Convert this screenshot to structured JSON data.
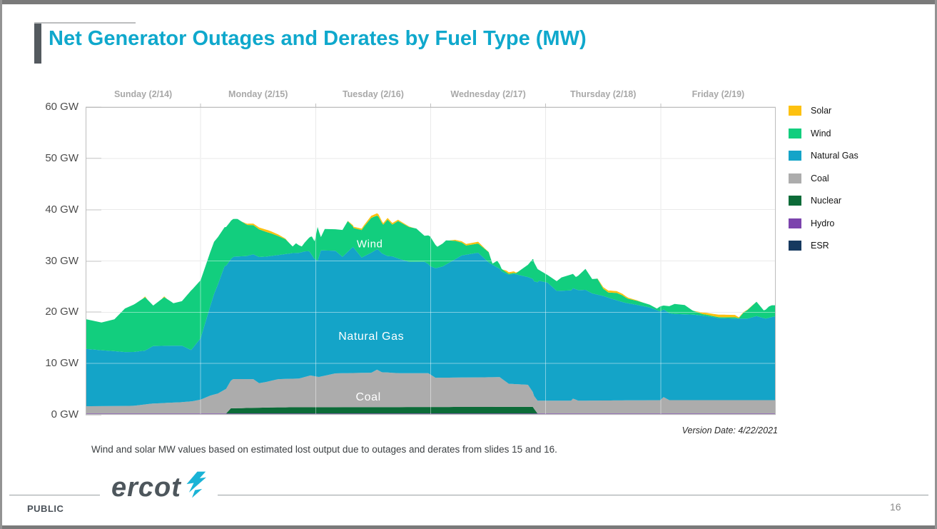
{
  "title": "Net Generator Outages and Derates by Fuel Type (MW)",
  "version_date": "Version Date: 4/22/2021",
  "footnote": "Wind and solar MW values based on estimated lost output due to outages and derates from slides 15 and 16.",
  "footer": {
    "classification": "PUBLIC",
    "page_number": "16",
    "logo_text": "ercot",
    "logo_icon": "lightning-bolt-icon",
    "logo_color": "#19b3d6"
  },
  "chart_data": {
    "type": "area",
    "stacked": true,
    "unit": "GW",
    "ylim": [
      0,
      60
    ],
    "y_step": 10,
    "y_tick_labels": [
      "60 GW",
      "50 GW",
      "40 GW",
      "30 GW",
      "20 GW",
      "10 GW",
      "0 GW"
    ],
    "x_total_hours": 144,
    "x_day_labels": [
      "Sunday (2/14)",
      "Monday (2/15)",
      "Tuesday (2/16)",
      "Wednesday (2/17)",
      "Thursday (2/18)",
      "Friday (2/19)"
    ],
    "grid": true,
    "legend_position": "right",
    "legend": [
      {
        "label": "Solar",
        "color": "#FDC110"
      },
      {
        "label": "Wind",
        "color": "#12CE7E"
      },
      {
        "label": "Natural Gas",
        "color": "#14A4C8"
      },
      {
        "label": "Coal",
        "color": "#ACACAC"
      },
      {
        "label": "Nuclear",
        "color": "#0C6B38"
      },
      {
        "label": "Hydro",
        "color": "#7C44AD"
      },
      {
        "label": "ESR",
        "color": "#16395F"
      }
    ],
    "area_labels": [
      {
        "text": "Wind",
        "t_hours": 59.3,
        "gw": 33.3,
        "size": 15
      },
      {
        "text": "Natural Gas",
        "t_hours": 59.6,
        "gw": 15.2,
        "size": 16
      },
      {
        "text": "Coal",
        "t_hours": 59.0,
        "gw": 3.35,
        "size": 16
      }
    ],
    "series_note": "stack order bottom to top; points are [hours_from_Sun_0000, GW_layer_thickness]",
    "series": [
      {
        "name": "ESR",
        "color": "#16395F",
        "points": [
          [
            0,
            0
          ],
          [
            144,
            0
          ]
        ]
      },
      {
        "name": "Hydro",
        "color": "#7C44AD",
        "points": [
          [
            0,
            0.25
          ],
          [
            144,
            0.25
          ]
        ]
      },
      {
        "name": "Nuclear",
        "color": "#0C6B38",
        "points": [
          [
            0,
            0
          ],
          [
            29.3,
            0
          ],
          [
            30.3,
            1.0
          ],
          [
            40,
            1.2
          ],
          [
            60,
            1.25
          ],
          [
            93.3,
            1.3
          ],
          [
            94.3,
            0
          ],
          [
            144,
            0
          ]
        ]
      },
      {
        "name": "Coal",
        "color": "#ACACAC",
        "points": [
          [
            0,
            1.4
          ],
          [
            10,
            1.5
          ],
          [
            14,
            1.95
          ],
          [
            20,
            2.2
          ],
          [
            22.3,
            2.4
          ],
          [
            24,
            2.7
          ],
          [
            26,
            3.5
          ],
          [
            27.6,
            3.9
          ],
          [
            29.3,
            4.8
          ],
          [
            30.8,
            5.7
          ],
          [
            35,
            5.6
          ],
          [
            36.2,
            4.8
          ],
          [
            37.7,
            5.0
          ],
          [
            40.2,
            5.5
          ],
          [
            44.5,
            5.6
          ],
          [
            46.9,
            6.2
          ],
          [
            48.7,
            5.9
          ],
          [
            52.1,
            6.6
          ],
          [
            59.6,
            6.7
          ],
          [
            60.8,
            7.3
          ],
          [
            61.8,
            6.8
          ],
          [
            65.5,
            6.6
          ],
          [
            71.5,
            6.6
          ],
          [
            73,
            5.7
          ],
          [
            86.4,
            5.8
          ],
          [
            88.3,
            4.5
          ],
          [
            92.3,
            4.3
          ],
          [
            93.6,
            2.5
          ],
          [
            101.3,
            2.5
          ],
          [
            101.7,
            2.9
          ],
          [
            102.8,
            2.5
          ],
          [
            119.9,
            2.6
          ],
          [
            120.6,
            3.2
          ],
          [
            121.8,
            2.6
          ],
          [
            144,
            2.6
          ]
        ]
      },
      {
        "name": "Natural Gas",
        "color": "#14A4C8",
        "points": [
          [
            0,
            11.2
          ],
          [
            3.3,
            10.9
          ],
          [
            6,
            10.7
          ],
          [
            8.2,
            10.5
          ],
          [
            12.4,
            10.5
          ],
          [
            14.1,
            11.2
          ],
          [
            18,
            11.1
          ],
          [
            20.1,
            11.0
          ],
          [
            22,
            10.0
          ],
          [
            24,
            12.0
          ],
          [
            26.8,
            19.6
          ],
          [
            29,
            24.1
          ],
          [
            30.2,
            23.7
          ],
          [
            31.3,
            23.9
          ],
          [
            33.5,
            24.0
          ],
          [
            36.2,
            24.6
          ],
          [
            40.2,
            24.2
          ],
          [
            43.2,
            24.5
          ],
          [
            45.7,
            24.5
          ],
          [
            46.6,
            24.3
          ],
          [
            47.7,
            22.9
          ],
          [
            48.4,
            22.6
          ],
          [
            49.1,
            24.6
          ],
          [
            52.1,
            23.9
          ],
          [
            53.6,
            22.7
          ],
          [
            55.8,
            24.6
          ],
          [
            57.6,
            22.5
          ],
          [
            59.6,
            23.4
          ],
          [
            61.1,
            23.5
          ],
          [
            63,
            22.7
          ],
          [
            64,
            22.7
          ],
          [
            67.5,
            21.7
          ],
          [
            70.7,
            21.7
          ],
          [
            71.9,
            21.1
          ],
          [
            74.5,
            21.7
          ],
          [
            78.5,
            23.8
          ],
          [
            81.9,
            24.3
          ],
          [
            84.1,
            22.4
          ],
          [
            86.8,
            20.9
          ],
          [
            89.4,
            21.5
          ],
          [
            92.3,
            21.0
          ],
          [
            94.6,
            23.4
          ],
          [
            96.4,
            23.0
          ],
          [
            98.3,
            21.4
          ],
          [
            101.3,
            21.5
          ],
          [
            104.3,
            21.6
          ],
          [
            105.7,
            20.9
          ],
          [
            108,
            20.4
          ],
          [
            110.2,
            19.7
          ],
          [
            112.7,
            19.0
          ],
          [
            115.1,
            18.6
          ],
          [
            117.7,
            18.1
          ],
          [
            119.9,
            17.3
          ],
          [
            120.6,
            17.1
          ],
          [
            122.9,
            16.8
          ],
          [
            126.6,
            16.7
          ],
          [
            129.6,
            16.4
          ],
          [
            132.1,
            16.0
          ],
          [
            136.3,
            15.9
          ],
          [
            138.1,
            15.9
          ],
          [
            140,
            16.4
          ],
          [
            141.9,
            15.9
          ],
          [
            144,
            16.4
          ]
        ]
      },
      {
        "name": "Wind",
        "color": "#12CE7E",
        "points": [
          [
            0,
            5.8
          ],
          [
            3.3,
            5.4
          ],
          [
            6,
            6.2
          ],
          [
            8.2,
            8.5
          ],
          [
            10.4,
            9.4
          ],
          [
            12.4,
            10.4
          ],
          [
            14.1,
            7.9
          ],
          [
            16.4,
            9.5
          ],
          [
            18.3,
            8.3
          ],
          [
            20.1,
            8.7
          ],
          [
            22,
            11.6
          ],
          [
            24,
            11.3
          ],
          [
            26.8,
            10.2
          ],
          [
            29,
            7.6
          ],
          [
            31.7,
            7.3
          ],
          [
            33.8,
            6.0
          ],
          [
            36.2,
            5.4
          ],
          [
            38.7,
            4.4
          ],
          [
            40.2,
            3.7
          ],
          [
            41.7,
            2.9
          ],
          [
            43.2,
            1.3
          ],
          [
            43.9,
            1.9
          ],
          [
            45.1,
            1.1
          ],
          [
            46.6,
            2.6
          ],
          [
            47.2,
            3.6
          ],
          [
            47.8,
            3.5
          ],
          [
            48.4,
            6.6
          ],
          [
            49.1,
            2.6
          ],
          [
            49.9,
            4.2
          ],
          [
            52.1,
            4.2
          ],
          [
            54.7,
            6.0
          ],
          [
            55.9,
            3.8
          ],
          [
            58.1,
            5.8
          ],
          [
            59.6,
            6.8
          ],
          [
            61.1,
            6.5
          ],
          [
            62.1,
            5.7
          ],
          [
            63,
            7.1
          ],
          [
            64,
            6.2
          ],
          [
            65.2,
            7.3
          ],
          [
            67,
            6.9
          ],
          [
            69,
            6.5
          ],
          [
            70.7,
            5.1
          ],
          [
            71.9,
            5.8
          ],
          [
            73.4,
            4.1
          ],
          [
            75.2,
            4.7
          ],
          [
            77.1,
            3.6
          ],
          [
            79.4,
            1.8
          ],
          [
            81.9,
            1.8
          ],
          [
            84.1,
            2.0
          ],
          [
            84.9,
            0.2
          ],
          [
            85.9,
            1.3
          ],
          [
            86.8,
            0.5
          ],
          [
            88.3,
            0.2
          ],
          [
            89.8,
            0.2
          ],
          [
            92.3,
            2.4
          ],
          [
            93.4,
            4.0
          ],
          [
            94.6,
            2.1
          ],
          [
            96.4,
            1.5
          ],
          [
            98.3,
            1.9
          ],
          [
            99.3,
            2.6
          ],
          [
            101.3,
            3.1
          ],
          [
            102.3,
            2.4
          ],
          [
            103,
            3.0
          ],
          [
            104.3,
            4.1
          ],
          [
            105.7,
            2.8
          ],
          [
            106.8,
            3.1
          ],
          [
            108,
            1.4
          ],
          [
            109.1,
            1.0
          ],
          [
            110.8,
            1.45
          ],
          [
            112,
            1.3
          ],
          [
            113.2,
            0.9
          ],
          [
            115.1,
            0.8
          ],
          [
            117.7,
            0.55
          ],
          [
            119.2,
            0.3
          ],
          [
            119.9,
            1.0
          ],
          [
            120.6,
            0.75
          ],
          [
            122.9,
            1.95
          ],
          [
            125,
            1.8
          ],
          [
            126.6,
            0.8
          ],
          [
            128.8,
            0.3
          ],
          [
            131,
            0.2
          ],
          [
            133.3,
            0.2
          ],
          [
            135.5,
            0.25
          ],
          [
            136.3,
            0.1
          ],
          [
            137.3,
            1.2
          ],
          [
            140,
            2.8
          ],
          [
            141.5,
            1.5
          ],
          [
            142.6,
            2.2
          ],
          [
            143.2,
            2.3
          ],
          [
            144,
            2.1
          ]
        ]
      },
      {
        "name": "Solar",
        "color": "#FDC110",
        "points": [
          [
            0,
            0
          ],
          [
            11.8,
            0
          ],
          [
            12.4,
            0.15
          ],
          [
            13,
            0
          ],
          [
            15.8,
            0
          ],
          [
            16.4,
            0.15
          ],
          [
            17,
            0
          ],
          [
            32.5,
            0
          ],
          [
            34,
            0.25
          ],
          [
            38,
            0.45
          ],
          [
            40.2,
            0.3
          ],
          [
            41.7,
            0.1
          ],
          [
            42.5,
            0
          ],
          [
            54.5,
            0
          ],
          [
            55.9,
            0.25
          ],
          [
            58.1,
            0.3
          ],
          [
            59.6,
            0.4
          ],
          [
            61.1,
            0.45
          ],
          [
            62.1,
            0.3
          ],
          [
            63,
            0.35
          ],
          [
            64,
            0.3
          ],
          [
            65.2,
            0.25
          ],
          [
            67,
            0.15
          ],
          [
            68.5,
            0
          ],
          [
            75.8,
            0
          ],
          [
            77.1,
            0.2
          ],
          [
            79.4,
            0.3
          ],
          [
            81.9,
            0.35
          ],
          [
            83.3,
            0.1
          ],
          [
            84.5,
            0
          ],
          [
            87,
            0
          ],
          [
            87.8,
            0.3
          ],
          [
            89.3,
            0.3
          ],
          [
            90.3,
            0
          ],
          [
            106.5,
            0
          ],
          [
            108,
            0.3
          ],
          [
            109.5,
            0.4
          ],
          [
            110.8,
            0.35
          ],
          [
            112,
            0.3
          ],
          [
            113.2,
            0.2
          ],
          [
            115.1,
            0.1
          ],
          [
            116.5,
            0
          ],
          [
            126.9,
            0
          ],
          [
            128.8,
            0.3
          ],
          [
            131,
            0.45
          ],
          [
            133.3,
            0.5
          ],
          [
            135.5,
            0.45
          ],
          [
            136.3,
            0.15
          ],
          [
            137.3,
            0.1
          ],
          [
            139,
            0.05
          ],
          [
            140,
            0
          ],
          [
            144,
            0
          ]
        ]
      }
    ]
  }
}
